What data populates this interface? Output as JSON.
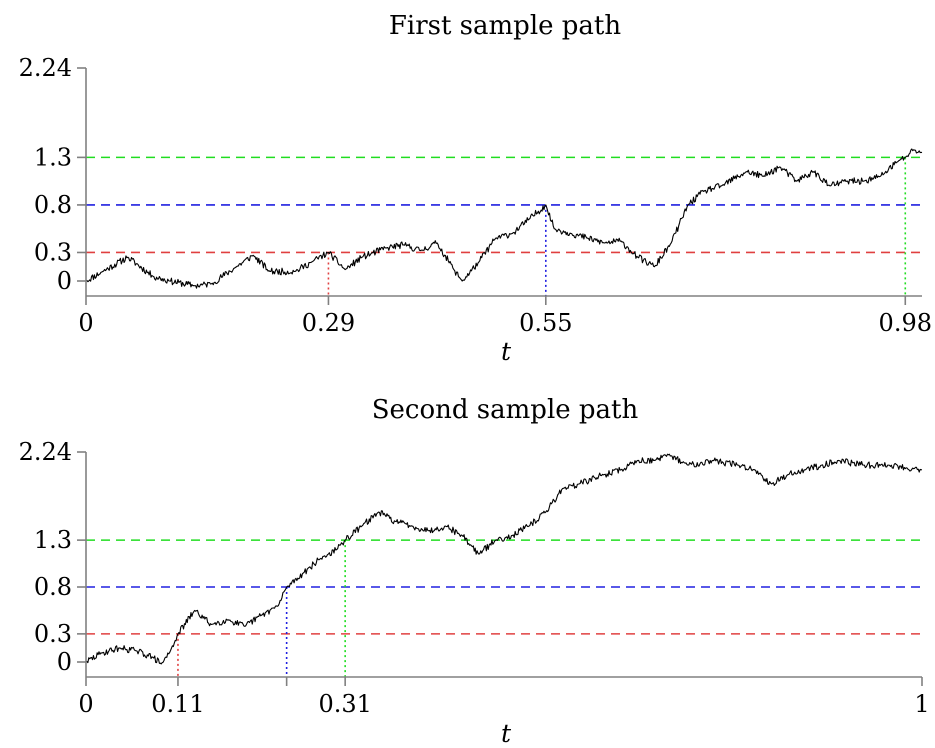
{
  "chart_data": [
    {
      "type": "line",
      "title": "First sample path",
      "xlabel": "t",
      "ylabel": "",
      "xlim": [
        0,
        1
      ],
      "ylim": [
        -0.1,
        2.24
      ],
      "y_ticks": [
        0,
        0.3,
        0.8,
        1.3,
        2.24
      ],
      "y_tick_labels": [
        "0",
        "0.3",
        "0.8",
        "1.3",
        "2.24"
      ],
      "x_ticks": [
        0,
        0.29,
        0.55,
        0.98
      ],
      "x_tick_labels": [
        "0",
        "0.29",
        "0.55",
        "0.98"
      ],
      "thresholds": [
        {
          "level": 0.3,
          "color": "#e04040",
          "hit_time": 0.29
        },
        {
          "level": 0.8,
          "color": "#2020e0",
          "hit_time": 0.55
        },
        {
          "level": 1.3,
          "color": "#20dd20",
          "hit_time": 0.98
        }
      ],
      "path_seed": 11,
      "series": [
        {
          "x": [
            0,
            0.02,
            0.05,
            0.08,
            0.1,
            0.13,
            0.15,
            0.18,
            0.2,
            0.22,
            0.25,
            0.27,
            0.29,
            0.31,
            0.33,
            0.36,
            0.38,
            0.4,
            0.42,
            0.44,
            0.45,
            0.47,
            0.49,
            0.51,
            0.53,
            0.55,
            0.56,
            0.58,
            0.6,
            0.62,
            0.64,
            0.66,
            0.68,
            0.7,
            0.72,
            0.74,
            0.76,
            0.79,
            0.81,
            0.83,
            0.85,
            0.87,
            0.89,
            0.91,
            0.93,
            0.95,
            0.97,
            0.98,
            0.99,
            1
          ],
          "y": [
            0,
            0.1,
            0.25,
            0.05,
            0.0,
            -0.05,
            -0.03,
            0.15,
            0.27,
            0.1,
            0.1,
            0.2,
            0.3,
            0.12,
            0.25,
            0.35,
            0.38,
            0.32,
            0.4,
            0.12,
            0.0,
            0.2,
            0.45,
            0.5,
            0.65,
            0.8,
            0.55,
            0.5,
            0.45,
            0.4,
            0.42,
            0.25,
            0.15,
            0.4,
            0.8,
            0.95,
            1.0,
            1.15,
            1.1,
            1.2,
            1.05,
            1.15,
            1.0,
            1.05,
            1.05,
            1.1,
            1.25,
            1.3,
            1.38,
            1.35
          ]
        }
      ]
    },
    {
      "type": "line",
      "title": "Second sample path",
      "xlabel": "t",
      "ylabel": "",
      "xlim": [
        0,
        1
      ],
      "ylim": [
        -0.1,
        2.24
      ],
      "y_ticks": [
        0,
        0.3,
        0.8,
        1.3,
        2.24
      ],
      "y_tick_labels": [
        "0",
        "0.3",
        "0.8",
        "1.3",
        "2.24"
      ],
      "x_ticks": [
        0,
        0.11,
        0.24,
        0.31,
        1
      ],
      "x_tick_labels": [
        "0",
        "0.11",
        "",
        "0.31",
        "1"
      ],
      "thresholds": [
        {
          "level": 0.3,
          "color": "#e04040",
          "hit_time": 0.11
        },
        {
          "level": 0.8,
          "color": "#2020e0",
          "hit_time": 0.24
        },
        {
          "level": 1.3,
          "color": "#20dd20",
          "hit_time": 0.31
        }
      ],
      "path_seed": 29,
      "series": [
        {
          "x": [
            0,
            0.02,
            0.04,
            0.06,
            0.08,
            0.09,
            0.1,
            0.11,
            0.13,
            0.15,
            0.17,
            0.19,
            0.21,
            0.23,
            0.24,
            0.26,
            0.28,
            0.3,
            0.31,
            0.33,
            0.35,
            0.37,
            0.39,
            0.41,
            0.43,
            0.45,
            0.47,
            0.49,
            0.51,
            0.53,
            0.55,
            0.57,
            0.59,
            0.62,
            0.64,
            0.66,
            0.68,
            0.7,
            0.72,
            0.75,
            0.78,
            0.8,
            0.82,
            0.84,
            0.86,
            0.88,
            0.9,
            0.93,
            0.96,
            1
          ],
          "y": [
            0,
            0.1,
            0.15,
            0.12,
            0.05,
            -0.02,
            0.1,
            0.3,
            0.55,
            0.4,
            0.45,
            0.38,
            0.5,
            0.6,
            0.8,
            0.95,
            1.1,
            1.2,
            1.3,
            1.45,
            1.6,
            1.5,
            1.45,
            1.4,
            1.45,
            1.35,
            1.15,
            1.3,
            1.35,
            1.45,
            1.6,
            1.85,
            1.9,
            2.0,
            2.05,
            2.15,
            2.15,
            2.2,
            2.1,
            2.15,
            2.1,
            2.05,
            1.9,
            2.0,
            2.05,
            2.1,
            2.15,
            2.1,
            2.1,
            2.05
          ]
        }
      ]
    }
  ]
}
